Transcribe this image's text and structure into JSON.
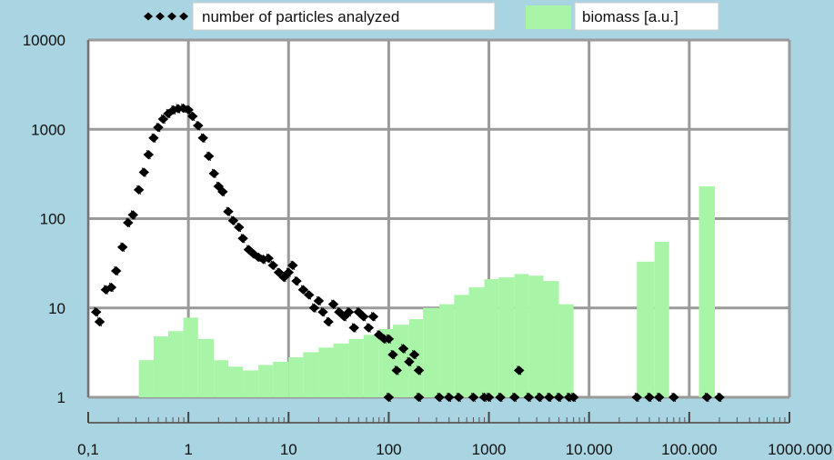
{
  "chart_data": {
    "type": "bar",
    "x_scale": "log",
    "y_scale": "log",
    "xlim": [
      0.1,
      1000000
    ],
    "ylim": [
      1,
      10000
    ],
    "grid": true,
    "legend_position": "top",
    "x_tick_labels": [
      "0,1",
      "1",
      "10",
      "100",
      "1000",
      "10.000",
      "100.000",
      "1000.000"
    ],
    "x_tick_values": [
      0.1,
      1,
      10,
      100,
      1000,
      10000,
      100000,
      1000000
    ],
    "y_tick_labels": [
      "1",
      "10",
      "100",
      "1000",
      "10000"
    ],
    "y_tick_values": [
      1,
      10,
      100,
      1000,
      10000
    ],
    "colors": {
      "biomass_fill": "#a8f5a8",
      "particles": "#000000",
      "grid": "#9a9a9a",
      "plot_background": "#ffffff"
    },
    "series": [
      {
        "name": "number of particles analyzed",
        "type": "scatter",
        "points": [
          [
            0.12,
            9
          ],
          [
            0.13,
            7
          ],
          [
            0.15,
            16
          ],
          [
            0.17,
            17
          ],
          [
            0.19,
            26
          ],
          [
            0.22,
            48
          ],
          [
            0.25,
            90
          ],
          [
            0.28,
            110
          ],
          [
            0.32,
            210
          ],
          [
            0.36,
            330
          ],
          [
            0.4,
            520
          ],
          [
            0.45,
            800
          ],
          [
            0.5,
            1050
          ],
          [
            0.56,
            1300
          ],
          [
            0.63,
            1500
          ],
          [
            0.71,
            1650
          ],
          [
            0.79,
            1700
          ],
          [
            0.89,
            1720
          ],
          [
            1.0,
            1650
          ],
          [
            1.1,
            1400
          ],
          [
            1.25,
            1100
          ],
          [
            1.4,
            800
          ],
          [
            1.6,
            500
          ],
          [
            1.8,
            320
          ],
          [
            2.0,
            230
          ],
          [
            2.2,
            200
          ],
          [
            2.5,
            120
          ],
          [
            2.8,
            95
          ],
          [
            3.2,
            80
          ],
          [
            3.5,
            60
          ],
          [
            4.0,
            45
          ],
          [
            4.5,
            40
          ],
          [
            5.0,
            37
          ],
          [
            5.6,
            35
          ],
          [
            6.3,
            36
          ],
          [
            7.0,
            30
          ],
          [
            8.0,
            25
          ],
          [
            9.0,
            22
          ],
          [
            10,
            25
          ],
          [
            11,
            30
          ],
          [
            12,
            20
          ],
          [
            14,
            16
          ],
          [
            16,
            14
          ],
          [
            18,
            10
          ],
          [
            20,
            12
          ],
          [
            22,
            9
          ],
          [
            25,
            7
          ],
          [
            28,
            11
          ],
          [
            32,
            9
          ],
          [
            36,
            8
          ],
          [
            40,
            9
          ],
          [
            45,
            6
          ],
          [
            50,
            9
          ],
          [
            56,
            8
          ],
          [
            63,
            6
          ],
          [
            70,
            8
          ],
          [
            80,
            5
          ],
          [
            90,
            4.5
          ],
          [
            100,
            4.5
          ],
          [
            110,
            3
          ],
          [
            120,
            2
          ],
          [
            140,
            3.5
          ],
          [
            160,
            2.5
          ],
          [
            180,
            3
          ],
          [
            200,
            2
          ],
          [
            100,
            1
          ],
          [
            200,
            1
          ],
          [
            320,
            1
          ],
          [
            400,
            1
          ],
          [
            500,
            1
          ],
          [
            700,
            1
          ],
          [
            900,
            1
          ],
          [
            1000,
            1
          ],
          [
            1300,
            1
          ],
          [
            1800,
            1
          ],
          [
            2000,
            2
          ],
          [
            2500,
            1
          ],
          [
            3200,
            1
          ],
          [
            4000,
            1
          ],
          [
            5000,
            1
          ],
          [
            6300,
            1
          ],
          [
            7000,
            1
          ],
          [
            30000,
            1
          ],
          [
            40000,
            1
          ],
          [
            50000,
            1
          ],
          [
            70000,
            1
          ],
          [
            150000,
            1
          ],
          [
            200000,
            1
          ]
        ]
      },
      {
        "name": "biomass [a.u.]",
        "type": "bar",
        "bins": [
          [
            0.32,
            0.45,
            2.6
          ],
          [
            0.45,
            0.63,
            4.8
          ],
          [
            0.63,
            0.89,
            5.5
          ],
          [
            0.89,
            1.25,
            7.8
          ],
          [
            1.25,
            1.8,
            4.5
          ],
          [
            1.8,
            2.5,
            2.6
          ],
          [
            2.5,
            3.5,
            2.2
          ],
          [
            3.5,
            5.0,
            2.0
          ],
          [
            5.0,
            7.0,
            2.3
          ],
          [
            7.0,
            10,
            2.5
          ],
          [
            10,
            14,
            2.8
          ],
          [
            14,
            20,
            3.2
          ],
          [
            20,
            28,
            3.6
          ],
          [
            28,
            40,
            4.0
          ],
          [
            40,
            56,
            4.5
          ],
          [
            56,
            80,
            5.0
          ],
          [
            80,
            110,
            5.8
          ],
          [
            110,
            160,
            6.5
          ],
          [
            160,
            220,
            7.5
          ],
          [
            220,
            320,
            10
          ],
          [
            320,
            450,
            11
          ],
          [
            450,
            630,
            14
          ],
          [
            630,
            900,
            17
          ],
          [
            900,
            1250,
            21
          ],
          [
            1250,
            1800,
            22
          ],
          [
            1800,
            2500,
            24
          ],
          [
            2500,
            3500,
            23
          ],
          [
            3500,
            5000,
            20
          ],
          [
            5000,
            7000,
            11
          ],
          [
            30000,
            45000,
            33
          ],
          [
            45000,
            63000,
            55
          ],
          [
            125000,
            180000,
            230
          ]
        ]
      }
    ]
  }
}
